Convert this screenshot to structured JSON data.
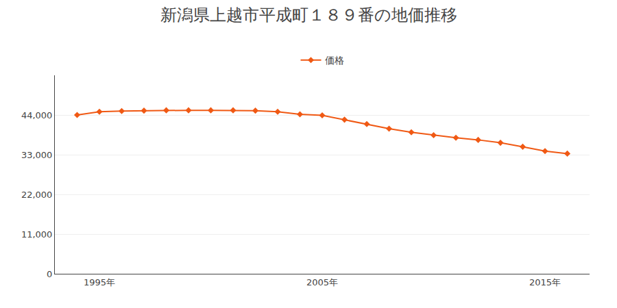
{
  "chart_data": {
    "type": "line",
    "title": "新潟県上越市平成町１８９番の地価推移",
    "x": [
      1994,
      1995,
      1996,
      1997,
      1998,
      1999,
      2000,
      2001,
      2002,
      2003,
      2004,
      2005,
      2006,
      2007,
      2008,
      2009,
      2010,
      2011,
      2012,
      2013,
      2014,
      2015,
      2016
    ],
    "series": [
      {
        "name": "価格",
        "color": "#f05914",
        "marker": "diamond",
        "values": [
          44000,
          44900,
          45100,
          45200,
          45300,
          45300,
          45300,
          45300,
          45200,
          44900,
          44200,
          43900,
          42700,
          41500,
          40200,
          39200,
          38400,
          37700,
          37100,
          36300,
          35200,
          34000,
          33300
        ]
      }
    ],
    "xlim": [
      1993,
      2017
    ],
    "xticks": [
      {
        "value": 1995,
        "label": "1995年"
      },
      {
        "value": 2005,
        "label": "2005年"
      },
      {
        "value": 2015,
        "label": "2015年"
      }
    ],
    "ylim": [
      0,
      55000
    ],
    "yticks": [
      0,
      {
        "value": 11000,
        "label": "11,000"
      },
      {
        "value": 22000,
        "label": "22,000"
      },
      {
        "value": 33000,
        "label": "33,000"
      },
      {
        "value": 44000,
        "label": "44,000"
      }
    ],
    "grid": true,
    "legend": "top"
  }
}
